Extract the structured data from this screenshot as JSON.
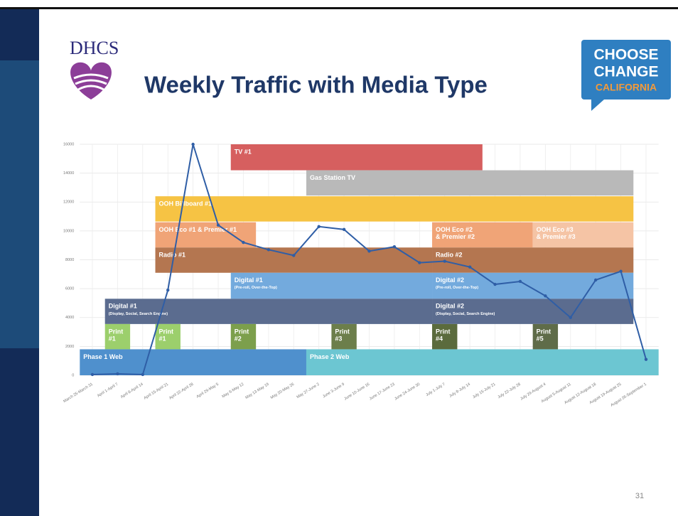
{
  "header": {
    "logo_text": "DHCS",
    "title": "Weekly Traffic with Media Type",
    "badge": [
      "CHOOSE",
      "CHANGE",
      "CALIFORNIA"
    ]
  },
  "chart_data": {
    "type": "line",
    "categories": [
      "March 25-March 31",
      "April 1-April 7",
      "April 8-April 14",
      "April 15-April 21",
      "April 22-April 28",
      "April 29-May 5",
      "May 6-May 12",
      "May 13-May 19",
      "May 20-May 26",
      "May 27-June 2",
      "June 3-June 9",
      "June 10-June 16",
      "June 17-June 23",
      "June 24-June 30",
      "July 1-July 7",
      "July 8-July 14",
      "July 15-July 21",
      "July 22-July 28",
      "July 29-August 4",
      "August 5-August 11",
      "August 12-August 18",
      "August 19-August 25",
      "August 26-September 1"
    ],
    "values": [
      50,
      100,
      50,
      5900,
      16000,
      10400,
      9200,
      8700,
      8300,
      10300,
      10100,
      8600,
      8900,
      7800,
      7900,
      7500,
      6300,
      6500,
      5500,
      4000,
      6600,
      7200,
      1100
    ],
    "color": "#2f5ea6",
    "ylim": [
      0,
      16000
    ],
    "yticks": [
      0,
      2000,
      4000,
      6000,
      8000,
      10000,
      12000,
      14000,
      16000
    ],
    "grid": true,
    "bands": [
      {
        "label": [
          "TV #1"
        ],
        "start": "May 6-May 12",
        "end": "July 8-July 14",
        "range": [
          14200,
          16000
        ],
        "color": "#d65f5f"
      },
      {
        "label": [
          "Gas Station TV"
        ],
        "start": "May 27-June 2",
        "end": "August 19-August 25",
        "range": [
          12450,
          14200
        ],
        "color": "#b9b9b9"
      },
      {
        "label": [
          "OOH Billboard #1"
        ],
        "start": "April 15-April 21",
        "end": "August 19-August 25",
        "range": [
          10650,
          12400
        ],
        "color": "#f6c344"
      },
      {
        "label": [
          "OOH Eco #1 & Premier #1"
        ],
        "start": "April 15-April 21",
        "end": "May 6-May 12",
        "range": [
          8850,
          10600
        ],
        "color": "#f0a477"
      },
      {
        "label": [
          "OOH Eco #2",
          "& Premier #2"
        ],
        "start": "July 1-July 7",
        "end": "July 22-July 28",
        "range": [
          8850,
          10600
        ],
        "color": "#f0a477"
      },
      {
        "label": [
          "OOH Eco #3",
          "& Premier #3"
        ],
        "start": "July 29-August 4",
        "end": "August 19-August 25",
        "range": [
          8850,
          10600
        ],
        "color": "#f5c4a5"
      },
      {
        "label": [
          "Radio #1"
        ],
        "start": "April 15-April 21",
        "end": "June 24-June 30",
        "range": [
          7100,
          8850
        ],
        "color": "#b47650"
      },
      {
        "label": [
          "Radio #2"
        ],
        "start": "July 1-July 7",
        "end": "August 19-August 25",
        "range": [
          7100,
          8850
        ],
        "color": "#b47650"
      },
      {
        "label": [
          "Digital #1",
          "(Pre-roll, Over-the-Top)"
        ],
        "start": "May 6-May 12",
        "end": "June 24-June 30",
        "range": [
          5300,
          7100
        ],
        "color": "#73aadd"
      },
      {
        "label": [
          "Digital #2",
          "(Pre-roll, Over-the-Top)"
        ],
        "start": "July 1-July 7",
        "end": "August 19-August 25",
        "range": [
          5300,
          7100
        ],
        "color": "#73aadd"
      },
      {
        "label": [
          "Digital #1",
          "(Display, Social, Search Engine)"
        ],
        "start": "April 1-April 7",
        "end": "June 24-June 30",
        "range": [
          3550,
          5300
        ],
        "color": "#5b6c8f"
      },
      {
        "label": [
          "Digital #2",
          "(Display, Social, Search Engine)"
        ],
        "start": "July 1-July 7",
        "end": "August 19-August 25",
        "range": [
          3550,
          5300
        ],
        "color": "#5b6c8f"
      },
      {
        "label": [
          "Print",
          "#1"
        ],
        "start": "April 1-April 7",
        "end": "April 1-April 7",
        "range": [
          1800,
          3550
        ],
        "color": "#9ccf6c"
      },
      {
        "label": [
          "Print",
          "#1"
        ],
        "start": "April 15-April 21",
        "end": "April 15-April 21",
        "range": [
          1800,
          3550
        ],
        "color": "#9ccf6c"
      },
      {
        "label": [
          "Print",
          "#2"
        ],
        "start": "May 6-May 12",
        "end": "May 6-May 12",
        "range": [
          1800,
          3550
        ],
        "color": "#7c9f4c"
      },
      {
        "label": [
          "Print",
          "#3"
        ],
        "start": "June 3-June 9",
        "end": "June 3-June 9",
        "range": [
          1800,
          3550
        ],
        "color": "#6c7e4b"
      },
      {
        "label": [
          "Print",
          "#4"
        ],
        "start": "July 1-July 7",
        "end": "July 1-July 7",
        "range": [
          1800,
          3550
        ],
        "color": "#5b6b3d"
      },
      {
        "label": [
          "Print",
          "#5"
        ],
        "start": "July 29-August 4",
        "end": "July 29-August 4",
        "range": [
          1800,
          3550
        ],
        "color": "#5f6c49"
      },
      {
        "label": [
          "Phase 1 Web"
        ],
        "start": "March 25-March 31",
        "end": "May 20-May 26",
        "range": [
          0,
          1800
        ],
        "color": "#4f90cd"
      },
      {
        "label": [
          "Phase 2 Web"
        ],
        "start": "May 27-June 2",
        "end": "August 26-September 1",
        "range": [
          0,
          1800
        ],
        "color": "#6cc6d2"
      }
    ]
  },
  "page_number": "31"
}
